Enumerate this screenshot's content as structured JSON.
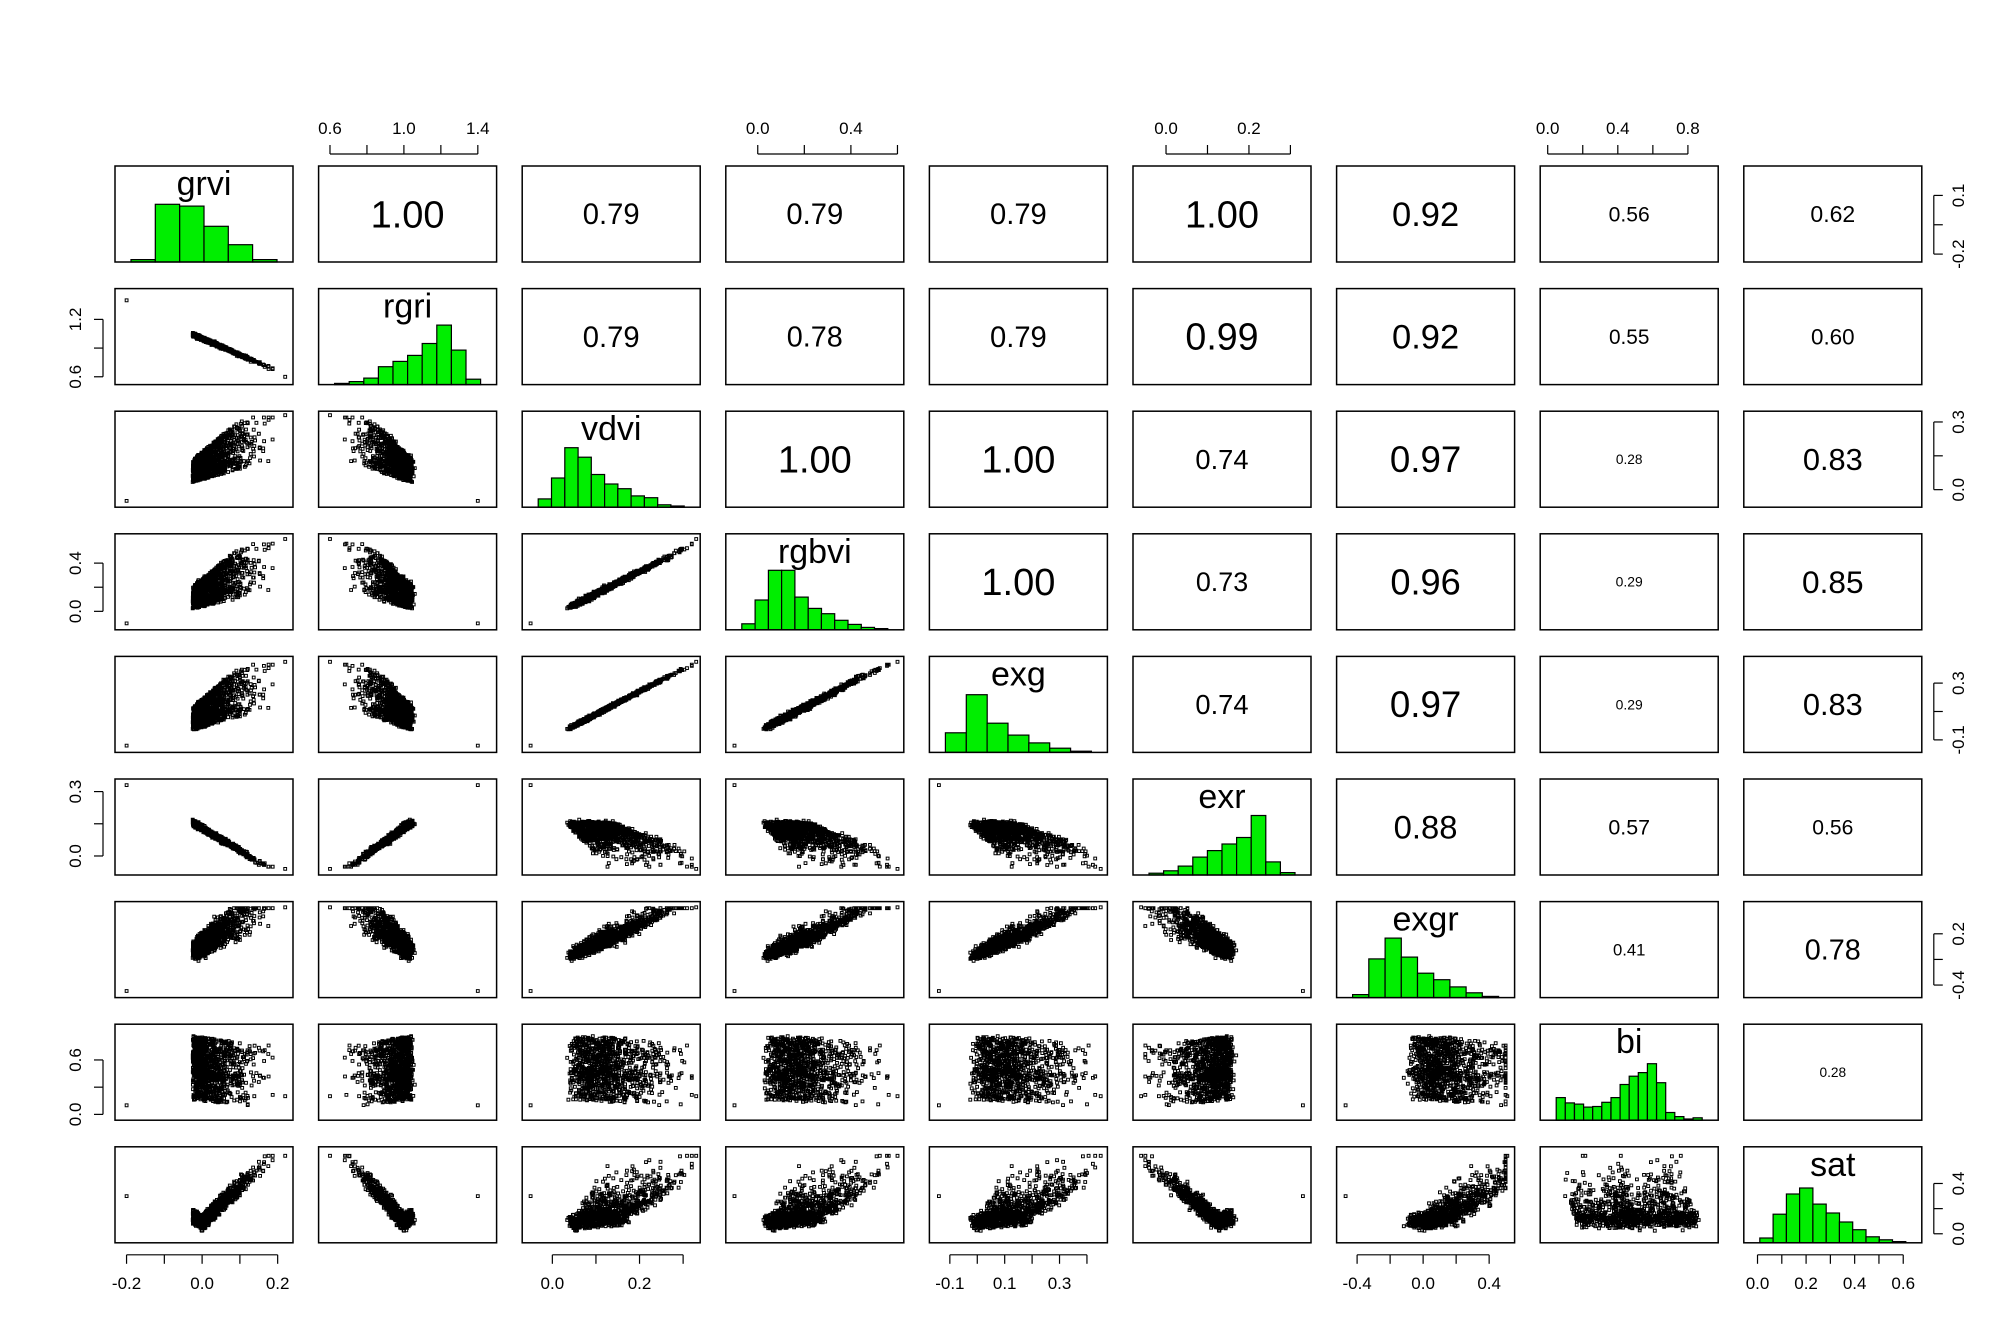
{
  "chart_data": {
    "type": "scatter",
    "subtype": "scatterplot-matrix",
    "variables": [
      "grvi",
      "rgri",
      "vdvi",
      "rgbvi",
      "exg",
      "exr",
      "exgr",
      "bi",
      "sat"
    ],
    "diagonal": "histogram",
    "upper_panel": "correlation",
    "lower_panel": "scatter",
    "histogram_color": "#00ee00",
    "point_color": "#000000",
    "ranges": [
      [
        -0.22,
        0.23
      ],
      [
        0.56,
        1.48
      ],
      [
        -0.06,
        0.33
      ],
      [
        -0.12,
        0.61
      ],
      [
        -0.16,
        0.46
      ],
      [
        -0.07,
        0.34
      ],
      [
        -0.5,
        0.53
      ],
      [
        -0.02,
        0.95
      ],
      [
        -0.04,
        0.66
      ]
    ],
    "correlations": [
      [
        null,
        "1.00",
        "0.79",
        "0.79",
        "0.79",
        "1.00",
        "0.92",
        "0.56",
        "0.62"
      ],
      [
        null,
        null,
        "0.79",
        "0.78",
        "0.79",
        "0.99",
        "0.92",
        "0.55",
        "0.60"
      ],
      [
        null,
        null,
        null,
        "1.00",
        "1.00",
        "0.74",
        "0.97",
        "0.28",
        "0.83"
      ],
      [
        null,
        null,
        null,
        null,
        "1.00",
        "0.73",
        "0.96",
        "0.29",
        "0.85"
      ],
      [
        null,
        null,
        null,
        null,
        null,
        "0.74",
        "0.97",
        "0.29",
        "0.83"
      ],
      [
        null,
        null,
        null,
        null,
        null,
        null,
        "0.88",
        "0.57",
        "0.56"
      ],
      [
        null,
        null,
        null,
        null,
        null,
        null,
        null,
        "0.41",
        "0.78"
      ],
      [
        null,
        null,
        null,
        null,
        null,
        null,
        null,
        null,
        "0.28"
      ],
      [
        null,
        null,
        null,
        null,
        null,
        null,
        null,
        null,
        null
      ]
    ],
    "histograms": [
      [
        0.04,
        0.97,
        0.94,
        0.6,
        0.29,
        0.04
      ],
      [
        0.02,
        0.05,
        0.11,
        0.3,
        0.39,
        0.49,
        0.69,
        1.0,
        0.58,
        0.09
      ],
      [
        0.14,
        0.49,
        1.0,
        0.84,
        0.55,
        0.39,
        0.31,
        0.19,
        0.16,
        0.04,
        0.02
      ],
      [
        0.1,
        0.5,
        1.0,
        1.0,
        0.55,
        0.36,
        0.27,
        0.16,
        0.09,
        0.04,
        0.02
      ],
      [
        0.33,
        0.97,
        0.49,
        0.29,
        0.16,
        0.07,
        0.02
      ],
      [
        0.03,
        0.07,
        0.15,
        0.3,
        0.41,
        0.52,
        0.63,
        1.0,
        0.22,
        0.04
      ],
      [
        0.05,
        0.65,
        1.0,
        0.68,
        0.41,
        0.3,
        0.18,
        0.08,
        0.02
      ],
      [
        0.38,
        0.29,
        0.27,
        0.22,
        0.23,
        0.3,
        0.38,
        0.6,
        0.74,
        0.8,
        0.95,
        0.63,
        0.13,
        0.06,
        0.02,
        0.04
      ],
      [
        0.08,
        0.48,
        0.82,
        0.92,
        0.65,
        0.5,
        0.35,
        0.22,
        0.1,
        0.05,
        0.02
      ]
    ],
    "axes": {
      "top": [
        {
          "column": 1,
          "ticks": [
            "0.6",
            "1.0",
            "1.4"
          ],
          "values": [
            0.6,
            1.0,
            1.4
          ]
        },
        {
          "column": 3,
          "ticks": [
            "0.0",
            "0.4"
          ],
          "values": [
            0.0,
            0.4
          ]
        },
        {
          "column": 5,
          "ticks": [
            "0.0",
            "0.2"
          ],
          "values": [
            0.0,
            0.2
          ]
        },
        {
          "column": 7,
          "ticks": [
            "0.0",
            "0.4",
            "0.8"
          ],
          "values": [
            0.0,
            0.4,
            0.8
          ]
        }
      ],
      "bottom": [
        {
          "column": 0,
          "ticks": [
            "-0.2",
            "0.0",
            "0.2"
          ],
          "values": [
            -0.2,
            0.0,
            0.2
          ]
        },
        {
          "column": 2,
          "ticks": [
            "0.0",
            "0.2"
          ],
          "values": [
            0.0,
            0.2
          ]
        },
        {
          "column": 4,
          "ticks": [
            "-0.1",
            "0.1",
            "0.3"
          ],
          "values": [
            -0.1,
            0.1,
            0.3
          ]
        },
        {
          "column": 6,
          "ticks": [
            "-0.4",
            "0.0",
            "0.4"
          ],
          "values": [
            -0.4,
            0.0,
            0.4
          ]
        },
        {
          "column": 8,
          "ticks": [
            "0.0",
            "0.2",
            "0.4",
            "0.6"
          ],
          "values": [
            0.0,
            0.2,
            0.4,
            0.6
          ]
        }
      ],
      "left": [
        {
          "row": 1,
          "ticks": [
            "0.6",
            "1.2"
          ],
          "values": [
            0.6,
            1.2
          ]
        },
        {
          "row": 3,
          "ticks": [
            "0.0",
            "0.4"
          ],
          "values": [
            0.0,
            0.4
          ]
        },
        {
          "row": 5,
          "ticks": [
            "0.0",
            "0.3"
          ],
          "values": [
            0.0,
            0.3
          ]
        },
        {
          "row": 7,
          "ticks": [
            "0.0",
            "0.6"
          ],
          "values": [
            0.0,
            0.6
          ]
        }
      ],
      "right": [
        {
          "row": 0,
          "ticks": [
            "-0.2",
            "0.1"
          ],
          "values": [
            -0.2,
            0.1
          ]
        },
        {
          "row": 2,
          "ticks": [
            "0.0",
            "0.3"
          ],
          "values": [
            0.0,
            0.3
          ]
        },
        {
          "row": 4,
          "ticks": [
            "-0.1",
            "0.3"
          ],
          "values": [
            -0.1,
            0.3
          ]
        },
        {
          "row": 6,
          "ticks": [
            "-0.4",
            "0.2"
          ],
          "values": [
            -0.4,
            0.2
          ]
        },
        {
          "row": 8,
          "ticks": [
            "0.0",
            "0.4"
          ],
          "values": [
            0.0,
            0.4
          ]
        }
      ]
    }
  }
}
